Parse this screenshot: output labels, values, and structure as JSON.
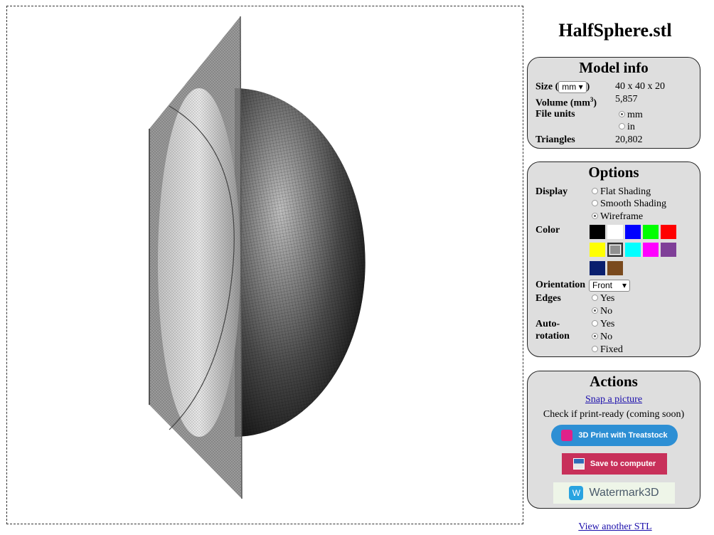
{
  "title": "HalfSphere.stl",
  "model_info": {
    "heading": "Model info",
    "size_label_pre": "Size (",
    "size_unit": "mm",
    "size_label_post": ")",
    "size_value": "40 x 40 x 20",
    "volume_label": "Volume (mm",
    "volume_sup": "3",
    "volume_label_post": ")",
    "volume_value": "5,857",
    "file_units_label": "File units",
    "unit_mm": "mm",
    "unit_in": "in",
    "triangles_label": "Triangles",
    "triangles_value": "20,802"
  },
  "options": {
    "heading": "Options",
    "display_label": "Display",
    "display_flat": "Flat Shading",
    "display_smooth": "Smooth Shading",
    "display_wire": "Wireframe",
    "color_label": "Color",
    "colors": [
      "#000000",
      "#ffffff",
      "#0000ff",
      "#00ff00",
      "#ff0000",
      "#ffff00",
      "#909090",
      "#00ffff",
      "#ff00ff",
      "#7f3f98",
      "#0a1f6e",
      "#7a4a1e"
    ],
    "orientation_label": "Orientation",
    "orientation_value": "Front",
    "edges_label": "Edges",
    "yes": "Yes",
    "no": "No",
    "autorot_label_1": "Auto-",
    "autorot_label_2": "rotation",
    "fixed": "Fixed"
  },
  "actions": {
    "heading": "Actions",
    "snap": "Snap a picture",
    "check": "Check if print-ready (coming soon)",
    "print_btn": "3D Print with Treatstock",
    "save_btn": "Save to computer",
    "watermark_btn": "Watermark3D"
  },
  "view_another": "View another STL"
}
